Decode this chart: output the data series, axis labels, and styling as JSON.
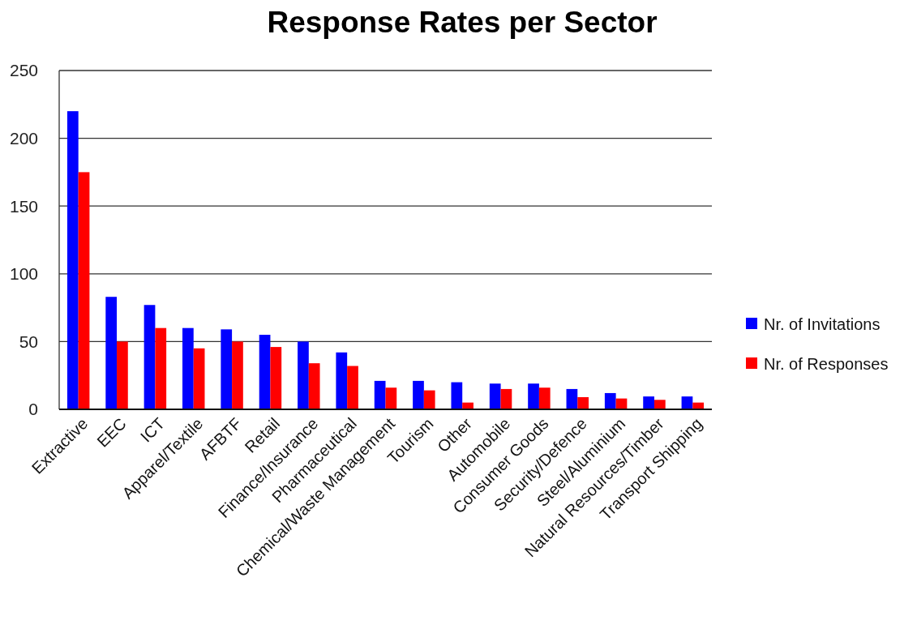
{
  "chart_data": {
    "type": "bar",
    "title": "Response Rates per Sector",
    "categories": [
      "Extractive",
      "EEC",
      "ICT",
      "Apparel/Textile",
      "AFBTF",
      "Retail",
      "Finance/Insurance",
      "Pharmaceutical",
      "Chemical/Waste Management",
      "Tourism",
      "Other",
      "Automobile",
      "Consumer Goods",
      "Security/Defence",
      "Steel/Aluminium",
      "Natural Resources/Timber",
      "Transport Shipping"
    ],
    "series": [
      {
        "name": "Nr. of Invitations",
        "color": "#0000ff",
        "values": [
          220,
          83,
          77,
          60,
          59,
          55,
          50,
          42,
          21,
          21,
          20,
          19,
          19,
          15,
          12,
          9.5,
          9.5
        ]
      },
      {
        "name": "Nr. of Responses",
        "color": "#ff0000",
        "values": [
          175,
          50,
          60,
          45,
          50,
          46,
          34,
          32,
          16,
          14,
          5,
          15,
          16,
          9,
          8,
          7,
          5
        ]
      }
    ],
    "ylim": [
      0,
      250
    ],
    "yticks": [
      0,
      50,
      100,
      150,
      200,
      250
    ],
    "grid": "y",
    "legend": "right"
  }
}
